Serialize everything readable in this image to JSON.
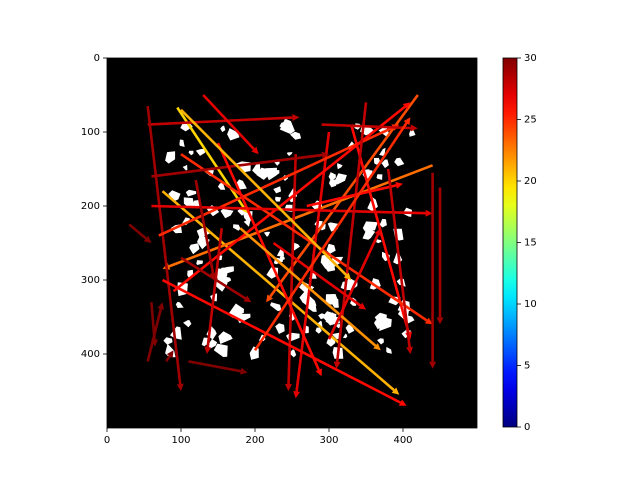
{
  "chart_data": {
    "type": "quiver",
    "xlim": [
      0,
      500
    ],
    "ylim": [
      500,
      0
    ],
    "xticks": [
      0,
      100,
      200,
      300,
      400
    ],
    "yticks": [
      0,
      100,
      200,
      300,
      400
    ],
    "background": "#000000",
    "colormap": "jet",
    "clim": [
      0,
      30
    ],
    "colorbar_ticks": [
      0,
      5,
      10,
      15,
      20,
      25,
      30
    ],
    "arrows": {
      "x": [
        95,
        75,
        420,
        440,
        55,
        130,
        55,
        330,
        300,
        255,
        70,
        90,
        100,
        60,
        75,
        60,
        350,
        440,
        450,
        30,
        60,
        80,
        55,
        110,
        225,
        290,
        155,
        270,
        150,
        100,
        180,
        100,
        300,
        200,
        380,
        120
      ],
      "y": [
        67,
        180,
        50,
        145,
        90,
        50,
        65,
        90,
        100,
        130,
        240,
        315,
        130,
        200,
        300,
        160,
        60,
        155,
        175,
        225,
        330,
        410,
        410,
        410,
        250,
        90,
        230,
        200,
        115,
        270,
        230,
        70,
        380,
        395,
        150,
        165
      ],
      "x_end": [
        190,
        395,
        215,
        75,
        260,
        205,
        100,
        410,
        255,
        245,
        395,
        410,
        440,
        440,
        405,
        300,
        310,
        440,
        450,
        60,
        65,
        90,
        75,
        190,
        350,
        420,
        135,
        400,
        290,
        195,
        370,
        330,
        370,
        410,
        410,
        145
      ],
      "y_end": [
        210,
        455,
        330,
        285,
        80,
        130,
        450,
        380,
        460,
        450,
        90,
        60,
        360,
        210,
        470,
        130,
        420,
        420,
        360,
        250,
        390,
        395,
        330,
        425,
        340,
        95,
        400,
        170,
        430,
        330,
        395,
        300,
        230,
        80,
        400,
        300
      ],
      "values": [
        20,
        21,
        24,
        23,
        28,
        27,
        29,
        26,
        27,
        28,
        25,
        26,
        25,
        27,
        26,
        29,
        28,
        29,
        29,
        30,
        30,
        30,
        30,
        30,
        27,
        28,
        28,
        26,
        26,
        29,
        22,
        21,
        27,
        25,
        28,
        29
      ]
    }
  }
}
